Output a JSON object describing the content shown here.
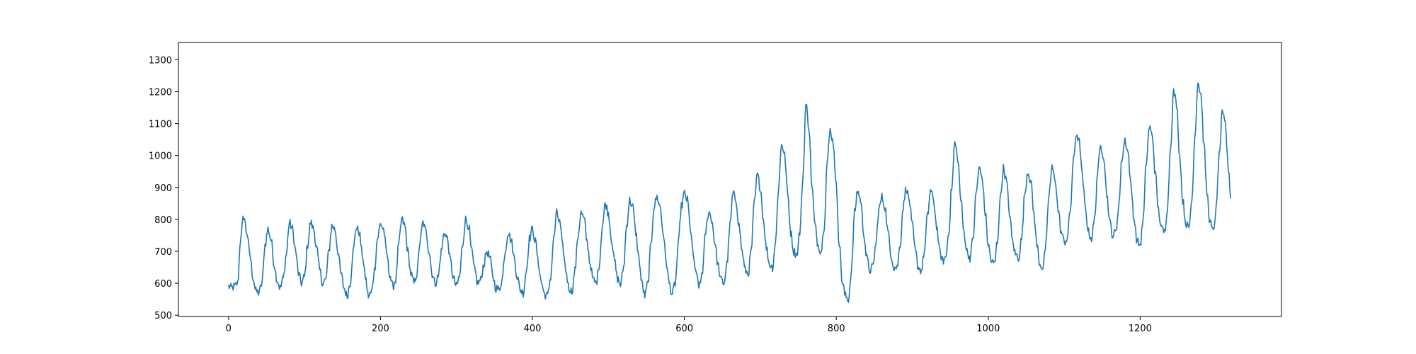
{
  "chart_data": {
    "type": "line",
    "title": "",
    "xlabel": "",
    "ylabel": "",
    "xlim": [
      -66,
      1386
    ],
    "ylim": [
      496,
      1354
    ],
    "grid": false,
    "legend": "none",
    "x_ticks": [
      0,
      200,
      400,
      600,
      800,
      1000,
      1200
    ],
    "y_ticks": [
      500,
      600,
      700,
      800,
      900,
      1000,
      1100,
      1200,
      1300
    ],
    "series": [
      {
        "color": "#1f77b4",
        "x_start": 0,
        "x_step": 1,
        "n_points": 1320,
        "keypoints": [
          [
            0,
            590
          ],
          [
            4,
            585
          ],
          [
            8,
            590
          ],
          [
            12,
            600
          ],
          [
            16,
            745
          ],
          [
            20,
            810
          ],
          [
            24,
            760
          ],
          [
            28,
            690
          ],
          [
            32,
            620
          ],
          [
            36,
            575
          ],
          [
            40,
            570
          ],
          [
            44,
            600
          ],
          [
            48,
            720
          ],
          [
            52,
            770
          ],
          [
            56,
            735
          ],
          [
            60,
            660
          ],
          [
            64,
            610
          ],
          [
            68,
            585
          ],
          [
            72,
            615
          ],
          [
            76,
            690
          ],
          [
            80,
            790
          ],
          [
            84,
            770
          ],
          [
            88,
            705
          ],
          [
            92,
            630
          ],
          [
            96,
            600
          ],
          [
            100,
            620
          ],
          [
            104,
            720
          ],
          [
            108,
            790
          ],
          [
            112,
            770
          ],
          [
            116,
            710
          ],
          [
            120,
            640
          ],
          [
            124,
            600
          ],
          [
            128,
            610
          ],
          [
            132,
            700
          ],
          [
            136,
            780
          ],
          [
            140,
            770
          ],
          [
            144,
            700
          ],
          [
            148,
            630
          ],
          [
            152,
            585
          ],
          [
            156,
            560
          ],
          [
            160,
            600
          ],
          [
            164,
            700
          ],
          [
            168,
            775
          ],
          [
            172,
            760
          ],
          [
            176,
            690
          ],
          [
            180,
            620
          ],
          [
            184,
            560
          ],
          [
            188,
            570
          ],
          [
            192,
            640
          ],
          [
            196,
            740
          ],
          [
            200,
            785
          ],
          [
            204,
            770
          ],
          [
            208,
            695
          ],
          [
            212,
            630
          ],
          [
            216,
            590
          ],
          [
            220,
            610
          ],
          [
            224,
            720
          ],
          [
            228,
            800
          ],
          [
            232,
            780
          ],
          [
            236,
            700
          ],
          [
            240,
            630
          ],
          [
            244,
            600
          ],
          [
            248,
            630
          ],
          [
            252,
            730
          ],
          [
            256,
            790
          ],
          [
            260,
            760
          ],
          [
            264,
            700
          ],
          [
            268,
            630
          ],
          [
            272,
            600
          ],
          [
            276,
            620
          ],
          [
            280,
            700
          ],
          [
            284,
            760
          ],
          [
            288,
            740
          ],
          [
            292,
            670
          ],
          [
            296,
            615
          ],
          [
            300,
            590
          ],
          [
            304,
            620
          ],
          [
            308,
            720
          ],
          [
            312,
            800
          ],
          [
            316,
            780
          ],
          [
            320,
            700
          ],
          [
            324,
            640
          ],
          [
            328,
            600
          ],
          [
            332,
            610
          ],
          [
            336,
            660
          ],
          [
            340,
            700
          ],
          [
            344,
            680
          ],
          [
            348,
            620
          ],
          [
            352,
            585
          ],
          [
            356,
            580
          ],
          [
            360,
            610
          ],
          [
            364,
            700
          ],
          [
            368,
            760
          ],
          [
            372,
            735
          ],
          [
            376,
            680
          ],
          [
            380,
            620
          ],
          [
            384,
            580
          ],
          [
            388,
            570
          ],
          [
            392,
            640
          ],
          [
            396,
            740
          ],
          [
            400,
            770
          ],
          [
            404,
            730
          ],
          [
            408,
            660
          ],
          [
            412,
            600
          ],
          [
            416,
            565
          ],
          [
            420,
            560
          ],
          [
            424,
            620
          ],
          [
            428,
            740
          ],
          [
            432,
            820
          ],
          [
            436,
            790
          ],
          [
            440,
            710
          ],
          [
            444,
            640
          ],
          [
            448,
            585
          ],
          [
            452,
            575
          ],
          [
            456,
            640
          ],
          [
            460,
            750
          ],
          [
            464,
            820
          ],
          [
            468,
            800
          ],
          [
            472,
            730
          ],
          [
            476,
            660
          ],
          [
            480,
            610
          ],
          [
            484,
            600
          ],
          [
            488,
            660
          ],
          [
            492,
            780
          ],
          [
            496,
            850
          ],
          [
            500,
            820
          ],
          [
            504,
            740
          ],
          [
            508,
            670
          ],
          [
            512,
            615
          ],
          [
            516,
            595
          ],
          [
            520,
            650
          ],
          [
            524,
            780
          ],
          [
            528,
            860
          ],
          [
            532,
            840
          ],
          [
            536,
            760
          ],
          [
            540,
            680
          ],
          [
            544,
            600
          ],
          [
            548,
            560
          ],
          [
            552,
            600
          ],
          [
            556,
            720
          ],
          [
            560,
            840
          ],
          [
            564,
            870
          ],
          [
            568,
            840
          ],
          [
            572,
            760
          ],
          [
            576,
            670
          ],
          [
            580,
            600
          ],
          [
            584,
            565
          ],
          [
            588,
            600
          ],
          [
            592,
            720
          ],
          [
            596,
            840
          ],
          [
            600,
            880
          ],
          [
            604,
            860
          ],
          [
            608,
            770
          ],
          [
            612,
            680
          ],
          [
            616,
            620
          ],
          [
            620,
            590
          ],
          [
            624,
            640
          ],
          [
            628,
            760
          ],
          [
            632,
            825
          ],
          [
            636,
            800
          ],
          [
            640,
            730
          ],
          [
            644,
            660
          ],
          [
            648,
            610
          ],
          [
            652,
            600
          ],
          [
            656,
            660
          ],
          [
            660,
            780
          ],
          [
            664,
            880
          ],
          [
            668,
            860
          ],
          [
            672,
            780
          ],
          [
            676,
            700
          ],
          [
            680,
            640
          ],
          [
            684,
            630
          ],
          [
            688,
            700
          ],
          [
            692,
            850
          ],
          [
            696,
            940
          ],
          [
            700,
            900
          ],
          [
            704,
            800
          ],
          [
            708,
            710
          ],
          [
            712,
            660
          ],
          [
            716,
            650
          ],
          [
            720,
            730
          ],
          [
            724,
            900
          ],
          [
            728,
            1040
          ],
          [
            732,
            1000
          ],
          [
            736,
            880
          ],
          [
            740,
            760
          ],
          [
            744,
            700
          ],
          [
            748,
            690
          ],
          [
            752,
            760
          ],
          [
            756,
            930
          ],
          [
            760,
            1160
          ],
          [
            764,
            1090
          ],
          [
            768,
            900
          ],
          [
            772,
            780
          ],
          [
            776,
            720
          ],
          [
            780,
            700
          ],
          [
            784,
            780
          ],
          [
            788,
            980
          ],
          [
            792,
            1080
          ],
          [
            796,
            1040
          ],
          [
            800,
            900
          ],
          [
            804,
            720
          ],
          [
            808,
            600
          ],
          [
            812,
            560
          ],
          [
            816,
            550
          ],
          [
            820,
            640
          ],
          [
            824,
            820
          ],
          [
            828,
            890
          ],
          [
            832,
            860
          ],
          [
            836,
            760
          ],
          [
            840,
            680
          ],
          [
            844,
            640
          ],
          [
            848,
            650
          ],
          [
            852,
            720
          ],
          [
            856,
            830
          ],
          [
            860,
            870
          ],
          [
            864,
            840
          ],
          [
            868,
            760
          ],
          [
            872,
            690
          ],
          [
            876,
            650
          ],
          [
            880,
            650
          ],
          [
            884,
            720
          ],
          [
            888,
            840
          ],
          [
            892,
            900
          ],
          [
            896,
            860
          ],
          [
            900,
            780
          ],
          [
            904,
            700
          ],
          [
            908,
            650
          ],
          [
            912,
            640
          ],
          [
            916,
            700
          ],
          [
            920,
            810
          ],
          [
            924,
            890
          ],
          [
            928,
            860
          ],
          [
            932,
            780
          ],
          [
            936,
            700
          ],
          [
            940,
            670
          ],
          [
            944,
            680
          ],
          [
            948,
            760
          ],
          [
            952,
            900
          ],
          [
            956,
            1040
          ],
          [
            960,
            990
          ],
          [
            964,
            860
          ],
          [
            968,
            760
          ],
          [
            972,
            700
          ],
          [
            976,
            680
          ],
          [
            980,
            740
          ],
          [
            984,
            880
          ],
          [
            988,
            960
          ],
          [
            992,
            930
          ],
          [
            996,
            820
          ],
          [
            1000,
            720
          ],
          [
            1004,
            670
          ],
          [
            1008,
            660
          ],
          [
            1012,
            730
          ],
          [
            1016,
            870
          ],
          [
            1020,
            960
          ],
          [
            1024,
            920
          ],
          [
            1028,
            820
          ],
          [
            1032,
            730
          ],
          [
            1036,
            690
          ],
          [
            1040,
            680
          ],
          [
            1044,
            740
          ],
          [
            1048,
            880
          ],
          [
            1052,
            950
          ],
          [
            1056,
            920
          ],
          [
            1060,
            820
          ],
          [
            1064,
            720
          ],
          [
            1068,
            660
          ],
          [
            1072,
            650
          ],
          [
            1076,
            720
          ],
          [
            1080,
            880
          ],
          [
            1084,
            960
          ],
          [
            1088,
            930
          ],
          [
            1092,
            830
          ],
          [
            1096,
            760
          ],
          [
            1100,
            730
          ],
          [
            1104,
            740
          ],
          [
            1108,
            830
          ],
          [
            1112,
            980
          ],
          [
            1116,
            1070
          ],
          [
            1120,
            1040
          ],
          [
            1124,
            930
          ],
          [
            1128,
            830
          ],
          [
            1132,
            760
          ],
          [
            1136,
            740
          ],
          [
            1140,
            800
          ],
          [
            1144,
            950
          ],
          [
            1148,
            1030
          ],
          [
            1152,
            1000
          ],
          [
            1156,
            880
          ],
          [
            1160,
            790
          ],
          [
            1164,
            750
          ],
          [
            1168,
            760
          ],
          [
            1172,
            850
          ],
          [
            1176,
            990
          ],
          [
            1180,
            1050
          ],
          [
            1184,
            1010
          ],
          [
            1188,
            900
          ],
          [
            1192,
            800
          ],
          [
            1196,
            730
          ],
          [
            1200,
            720
          ],
          [
            1204,
            800
          ],
          [
            1208,
            980
          ],
          [
            1212,
            1090
          ],
          [
            1216,
            1060
          ],
          [
            1220,
            940
          ],
          [
            1224,
            830
          ],
          [
            1228,
            770
          ],
          [
            1232,
            760
          ],
          [
            1236,
            840
          ],
          [
            1240,
            1030
          ],
          [
            1244,
            1200
          ],
          [
            1248,
            1160
          ],
          [
            1252,
            1000
          ],
          [
            1256,
            860
          ],
          [
            1260,
            790
          ],
          [
            1264,
            770
          ],
          [
            1268,
            860
          ],
          [
            1272,
            1060
          ],
          [
            1276,
            1230
          ],
          [
            1280,
            1190
          ],
          [
            1284,
            1030
          ],
          [
            1288,
            880
          ],
          [
            1292,
            790
          ],
          [
            1296,
            760
          ],
          [
            1300,
            830
          ],
          [
            1304,
            1000
          ],
          [
            1308,
            1130
          ],
          [
            1312,
            1100
          ],
          [
            1316,
            960
          ],
          [
            1320,
            850
          ]
        ]
      }
    ]
  }
}
